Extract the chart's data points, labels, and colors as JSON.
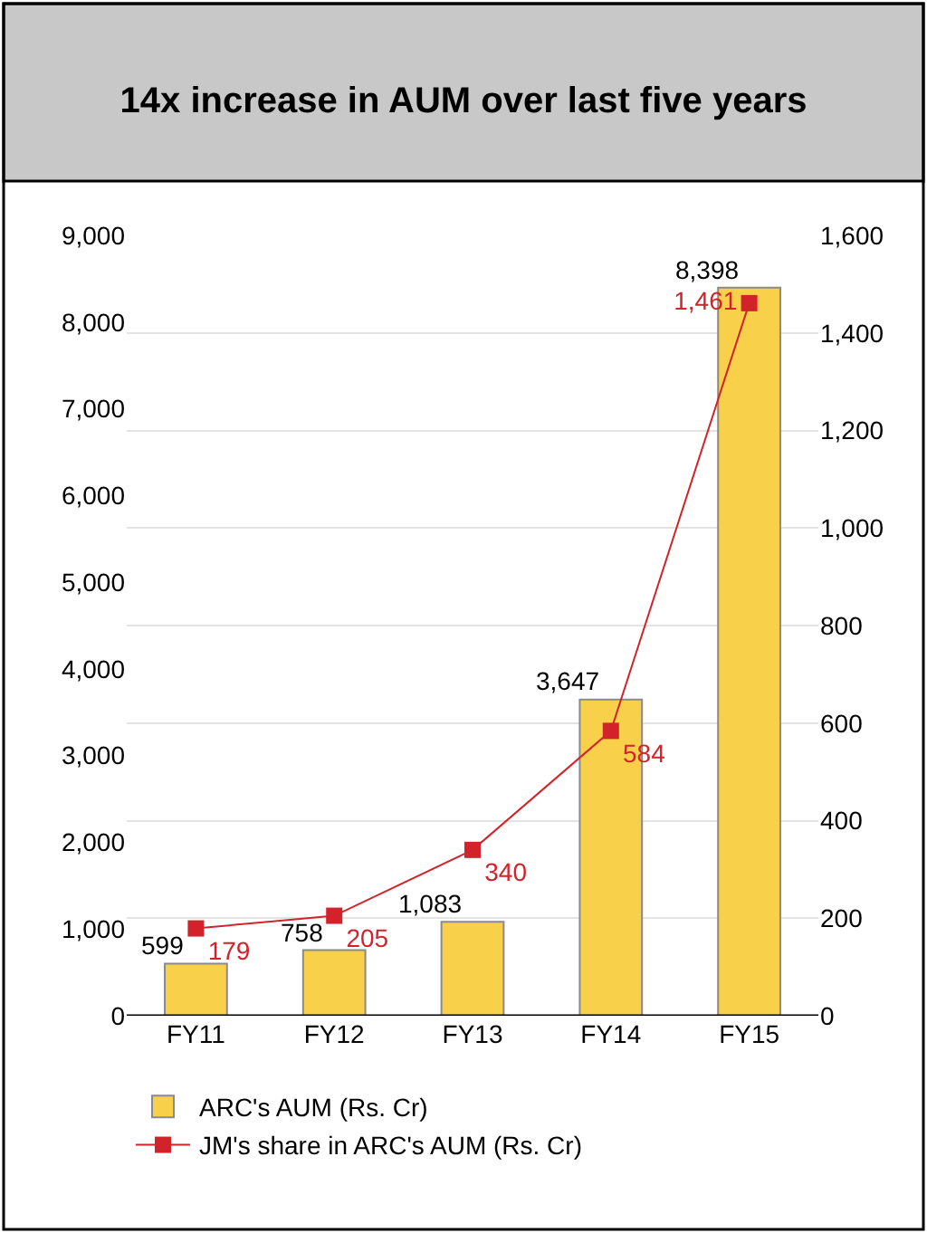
{
  "chart_data": {
    "type": "bar",
    "title": "14x increase in AUM over last five years",
    "categories": [
      "FY11",
      "FY12",
      "FY13",
      "FY14",
      "FY15"
    ],
    "series": [
      {
        "name": "ARC's AUM (Rs. Cr)",
        "color": "#f9d04a",
        "values": [
          599,
          758,
          1083,
          3647,
          8398
        ],
        "value_labels": [
          "599",
          "758",
          "1,083",
          "3,647",
          "8,398"
        ]
      },
      {
        "name": "JM's share in ARC's AUM (Rs. Cr)",
        "type": "line",
        "axis": "y2",
        "color": "#d2232a",
        "values": [
          179,
          205,
          340,
          584,
          1461
        ],
        "value_labels": [
          "179",
          "205",
          "340",
          "584",
          "1,461"
        ]
      }
    ],
    "ylim": [
      0,
      9000
    ],
    "yticks": [
      0,
      {
        "value": 1000,
        "label": "1,000"
      },
      {
        "value": 2000,
        "label": "2,000"
      },
      {
        "value": 3000,
        "label": "3,000"
      },
      {
        "value": 4000,
        "label": "4,000"
      },
      {
        "value": 5000,
        "label": "5,000"
      },
      {
        "value": 6000,
        "label": "6,000"
      },
      {
        "value": 7000,
        "label": "7,000"
      },
      {
        "value": 8000,
        "label": "8,000"
      },
      {
        "value": 9000,
        "label": "9,000"
      }
    ],
    "y2lim": [
      0,
      1600
    ],
    "y2ticks": [
      0,
      200,
      400,
      600,
      800,
      {
        "value": 1000,
        "label": "1,000"
      },
      {
        "value": 1200,
        "label": "1,200"
      },
      {
        "value": 1400,
        "label": "1,400"
      },
      {
        "value": 1600,
        "label": "1,600"
      }
    ],
    "grid": "y2",
    "legend": "bottom left",
    "marker": "square",
    "line_style": "solid"
  }
}
